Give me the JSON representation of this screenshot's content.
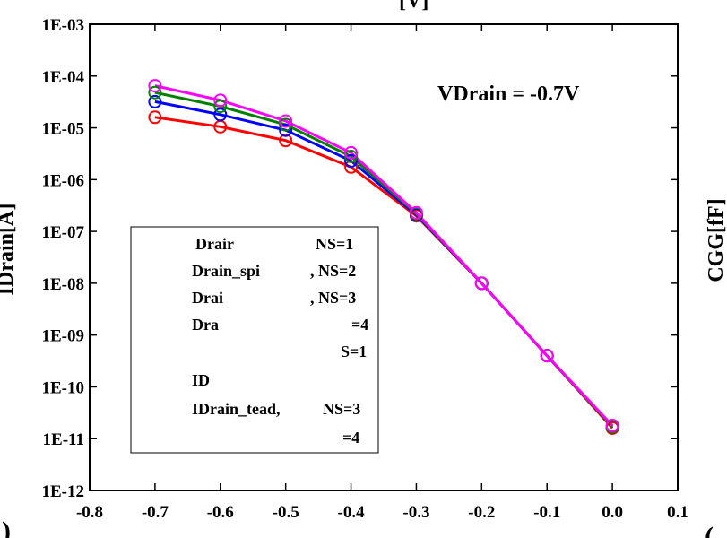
{
  "chart_data": {
    "type": "line",
    "title": "",
    "xlabel": "",
    "ylabel": "IDrain[A]",
    "right_ylabel": "CGG[fF]",
    "top_partial_label": "[V]",
    "corner_marks": [
      ")",
      "("
    ],
    "annotation": "VDrain = -0.7V",
    "x_scale": "linear",
    "y_scale": "log",
    "xlim": [
      -0.8,
      0.1
    ],
    "ylim": [
      1e-12,
      0.001
    ],
    "x_ticks": [
      -0.8,
      -0.7,
      -0.6,
      -0.5,
      -0.4,
      -0.3,
      -0.2,
      -0.1,
      0.0,
      0.1
    ],
    "x_tick_labels": [
      "-0.8",
      "-0.7",
      "-0.6",
      "-0.5",
      "-0.4",
      "-0.3",
      "-0.2",
      "-0.1",
      "0.0",
      "0.1"
    ],
    "y_ticks": [
      1e-12,
      1e-11,
      1e-10,
      1e-09,
      1e-08,
      1e-07,
      1e-06,
      1e-05,
      0.0001,
      0.001
    ],
    "y_tick_labels": [
      "1E-12",
      "1E-11",
      "1E-10",
      "1E-09",
      "1E-08",
      "1E-07",
      "1E-06",
      "1E-05",
      "1E-04",
      "1E-03"
    ],
    "grid": false,
    "legend_position": "bottom-left",
    "legend_entries": [
      "Drair",
      "NS=1",
      "Drain_spi",
      ", NS=2",
      "Drai",
      ", NS=3",
      "Dra",
      "=4",
      "S=1",
      "ID",
      "IDrain_tead, ",
      "NS=3",
      "=4"
    ],
    "x": [
      -0.7,
      -0.6,
      -0.5,
      -0.4,
      -0.3,
      -0.2,
      -0.1,
      0.0
    ],
    "series": [
      {
        "color": "#ff00ff",
        "marker": "circle",
        "values": [
          6.5e-05,
          3.4e-05,
          1.35e-05,
          3.3e-06,
          2.3e-07,
          1e-08,
          4e-10,
          1.8e-11
        ]
      },
      {
        "color": "#008000",
        "marker": "circle",
        "values": [
          4.8e-05,
          2.6e-05,
          1.15e-05,
          2.8e-06,
          2.2e-07,
          1e-08,
          4e-10,
          1.7e-11
        ]
      },
      {
        "color": "#0000ff",
        "marker": "circle",
        "values": [
          3.2e-05,
          1.8e-05,
          9e-06,
          2.3e-06,
          2.1e-07,
          1e-08,
          4e-10,
          1.7e-11
        ]
      },
      {
        "color": "#ff0000",
        "marker": "circle",
        "values": [
          1.6e-05,
          1.05e-05,
          5.7e-06,
          1.75e-06,
          2e-07,
          1e-08,
          4e-10,
          1.6e-11
        ]
      }
    ]
  }
}
